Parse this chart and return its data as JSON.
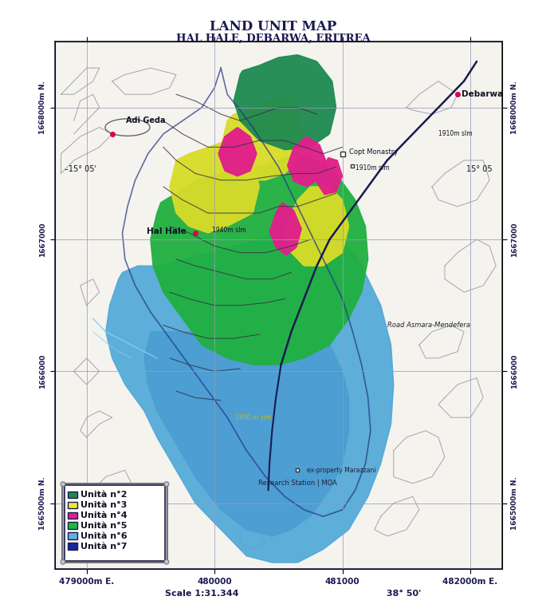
{
  "title_line1": "Land Unit Map",
  "title_line2": "Hal Hale, Debarwa, Eritrea",
  "title_fontsize": 12,
  "subtitle_fontsize": 10,
  "background_color": "#ffffff",
  "xlim": [
    478750,
    482250
  ],
  "ylim": [
    1664500,
    1668500
  ],
  "xticks": [
    479000,
    480000,
    481000,
    482000
  ],
  "yticks": [
    1665000,
    1666000,
    1667000,
    1668000
  ],
  "xlabel_ticks": [
    "479000m E.",
    "480000",
    "481000",
    "482000m E."
  ],
  "ylabel_ticks_left": [
    "1665000m N.",
    "1666000",
    "1667000",
    "1668000m N."
  ],
  "ylabel_ticks_right": [
    "1665000m N.",
    "1666000",
    "1667000",
    "1668000m N."
  ],
  "scale_text": "Scale 1:31.344",
  "coord_text": "38° 50'",
  "lat_left": "–15° 05'",
  "lat_right": "15° 05",
  "legend_labels": [
    "Unità n°2",
    "Unità n°3",
    "Unità n°4",
    "Unità n°5",
    "Unità n°6",
    "Unità n°7"
  ],
  "legend_colors": [
    "#1e8a50",
    "#e8ea30",
    "#e0208a",
    "#20b840",
    "#60b0e0",
    "#1828a0"
  ],
  "unit2_color": "#1e8a50",
  "unit3_color": "#d8dc28",
  "unit4_color": "#e0208a",
  "unit5_color": "#20b040",
  "unit6_color": "#50a8d8",
  "unit7_color": "#1828a0",
  "contour_color": "#333344",
  "bg_contour_color": "#888899",
  "grid_color": "#9999bb",
  "point_color": "#dd0044",
  "map_bg": "#f5f3ee"
}
